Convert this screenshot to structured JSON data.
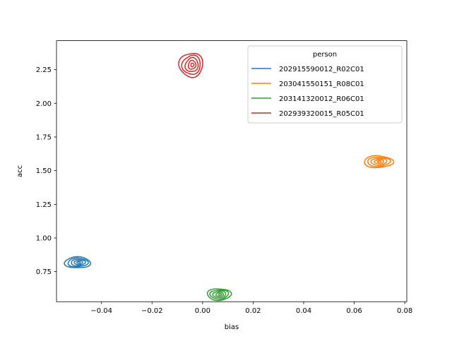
{
  "chart_data": {
    "type": "kde-contour",
    "xlabel": "bias",
    "ylabel": "acc",
    "xlim": [
      -0.0578,
      0.0808
    ],
    "ylim": [
      0.527,
      2.465
    ],
    "xticks": [
      -0.04,
      -0.02,
      0.0,
      0.02,
      0.04,
      0.06,
      0.08
    ],
    "xtick_labels": [
      "−0.04",
      "−0.02",
      "0.00",
      "0.02",
      "0.04",
      "0.06",
      "0.08"
    ],
    "yticks": [
      0.75,
      1.0,
      1.25,
      1.5,
      1.75,
      2.0,
      2.25
    ],
    "ytick_labels": [
      "0.75",
      "1.00",
      "1.25",
      "1.50",
      "1.75",
      "2.00",
      "2.25"
    ],
    "grid": false,
    "legend": {
      "title": "person",
      "placement": "top-right"
    },
    "series": [
      {
        "name": "202915590012_R02C01",
        "color": "#1f77b4",
        "center": [
          -0.0495,
          0.818
        ],
        "spread": [
          0.0049,
          0.043
        ]
      },
      {
        "name": "203041550151_R08C01",
        "color": "#ff7f0e",
        "center": [
          0.0695,
          1.566
        ],
        "spread": [
          0.0055,
          0.046
        ]
      },
      {
        "name": "203141320012_R06C01",
        "color": "#2ca02c",
        "center": [
          0.0065,
          0.581
        ],
        "spread": [
          0.0045,
          0.045
        ]
      },
      {
        "name": "202939320015_R05C01",
        "color": "#d62728",
        "center": [
          -0.0045,
          2.285
        ],
        "spread": [
          0.0045,
          0.093
        ]
      }
    ]
  }
}
